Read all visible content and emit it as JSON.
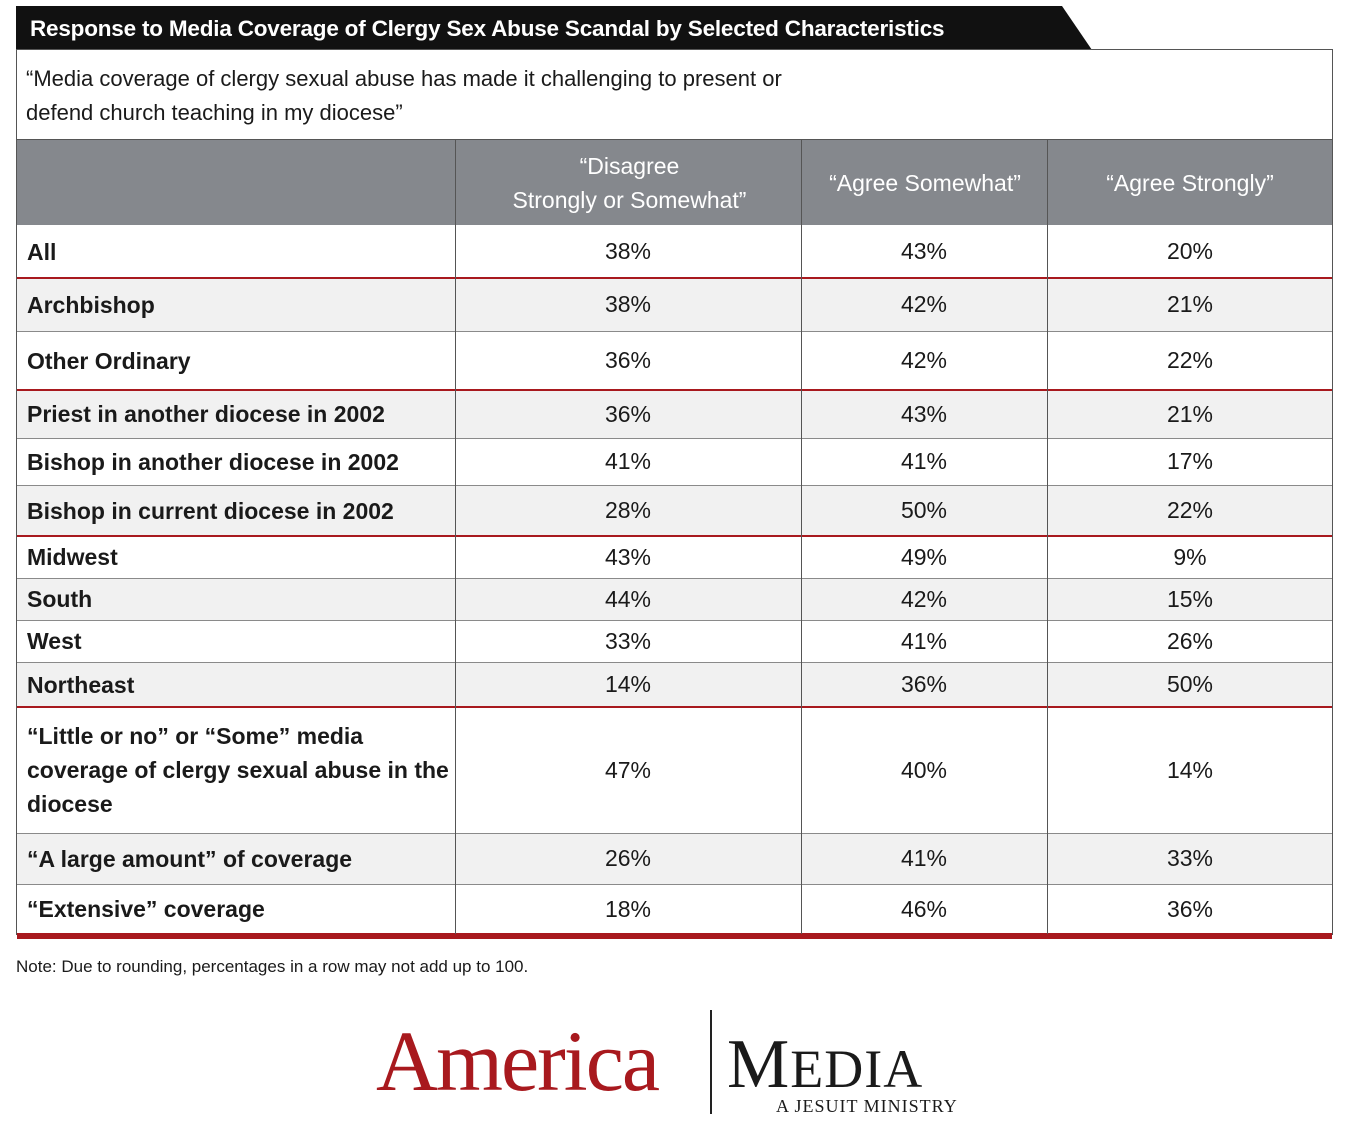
{
  "title": "Response to Media Coverage of Clergy Sex Abuse Scandal by Selected Characteristics",
  "question": "“Media coverage of clergy sexual abuse has made it challenging to present or defend church teaching in my diocese”",
  "note": "Note: Due to rounding, percentages in a row may not add up to 100.",
  "logo": {
    "america": "America",
    "media_first": "M",
    "media_rest": "EDIA",
    "tagline": "A JESUIT MINISTRY"
  },
  "colors": {
    "accent_red": "#a8191e",
    "header_gray": "#85888d",
    "title_bg": "#111111"
  },
  "chart_data": {
    "type": "table",
    "columns": [
      "“Disagree\nStrongly or Somewhat”",
      "“Agree Somewhat”",
      "“Agree Strongly”"
    ],
    "rows": [
      {
        "label": "All",
        "values": [
          "38%",
          "43%",
          "20%"
        ]
      },
      {
        "label": "Archbishop",
        "values": [
          "38%",
          "42%",
          "21%"
        ]
      },
      {
        "label": "Other Ordinary",
        "values": [
          "36%",
          "42%",
          "22%"
        ]
      },
      {
        "label": "Priest in another diocese in 2002",
        "values": [
          "36%",
          "43%",
          "21%"
        ]
      },
      {
        "label": "Bishop in another diocese in 2002",
        "values": [
          "41%",
          "41%",
          "17%"
        ]
      },
      {
        "label": "Bishop in current diocese in 2002",
        "values": [
          "28%",
          "50%",
          "22%"
        ]
      },
      {
        "label": "Midwest",
        "values": [
          "43%",
          "49%",
          "9%"
        ]
      },
      {
        "label": "South",
        "values": [
          "44%",
          "42%",
          "15%"
        ]
      },
      {
        "label": "West",
        "values": [
          "33%",
          "41%",
          "26%"
        ]
      },
      {
        "label": "Northeast",
        "values": [
          "14%",
          "36%",
          "50%"
        ]
      },
      {
        "label": "“Little or no” or “Some” media coverage of clergy sexual abuse in the diocese",
        "values": [
          "47%",
          "40%",
          "14%"
        ]
      },
      {
        "label": "“A large amount” of coverage",
        "values": [
          "26%",
          "41%",
          "33%"
        ]
      },
      {
        "label": "“Extensive” coverage",
        "values": [
          "18%",
          "46%",
          "36%"
        ]
      }
    ]
  }
}
